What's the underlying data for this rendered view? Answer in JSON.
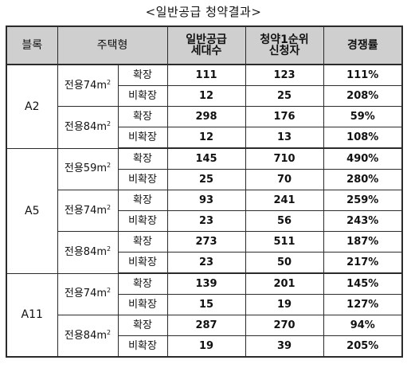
{
  "title": "<일반공급 청약결과>",
  "headers": {
    "block": "블록",
    "type": "주택형",
    "households_l1": "일반공급",
    "households_l2": "세대수",
    "applicants_l1": "청약1순위",
    "applicants_l2": "신청자",
    "ratio": "경쟁률"
  },
  "area_prefix": "전용",
  "area_unit": "m",
  "area_sup": "2",
  "rows": [
    {
      "block": "A2",
      "area": "74",
      "kind": "확장",
      "households": "111",
      "applicants": "123",
      "ratio": "111%"
    },
    {
      "block": "A2",
      "area": "74",
      "kind": "비확장",
      "households": "12",
      "applicants": "25",
      "ratio": "208%"
    },
    {
      "block": "A2",
      "area": "84",
      "kind": "확장",
      "households": "298",
      "applicants": "176",
      "ratio": "59%"
    },
    {
      "block": "A2",
      "area": "84",
      "kind": "비확장",
      "households": "12",
      "applicants": "13",
      "ratio": "108%"
    },
    {
      "block": "A5",
      "area": "59",
      "kind": "확장",
      "households": "145",
      "applicants": "710",
      "ratio": "490%"
    },
    {
      "block": "A5",
      "area": "59",
      "kind": "비확장",
      "households": "25",
      "applicants": "70",
      "ratio": "280%"
    },
    {
      "block": "A5",
      "area": "74",
      "kind": "확장",
      "households": "93",
      "applicants": "241",
      "ratio": "259%"
    },
    {
      "block": "A5",
      "area": "74",
      "kind": "비확장",
      "households": "23",
      "applicants": "56",
      "ratio": "243%"
    },
    {
      "block": "A5",
      "area": "84",
      "kind": "확장",
      "households": "273",
      "applicants": "511",
      "ratio": "187%"
    },
    {
      "block": "A5",
      "area": "84",
      "kind": "비확장",
      "households": "23",
      "applicants": "50",
      "ratio": "217%"
    },
    {
      "block": "A11",
      "area": "74",
      "kind": "확장",
      "households": "139",
      "applicants": "201",
      "ratio": "145%"
    },
    {
      "block": "A11",
      "area": "74",
      "kind": "비확장",
      "households": "15",
      "applicants": "19",
      "ratio": "127%"
    },
    {
      "block": "A11",
      "area": "84",
      "kind": "확장",
      "households": "287",
      "applicants": "270",
      "ratio": "94%"
    },
    {
      "block": "A11",
      "area": "84",
      "kind": "비확장",
      "households": "19",
      "applicants": "39",
      "ratio": "205%"
    }
  ]
}
